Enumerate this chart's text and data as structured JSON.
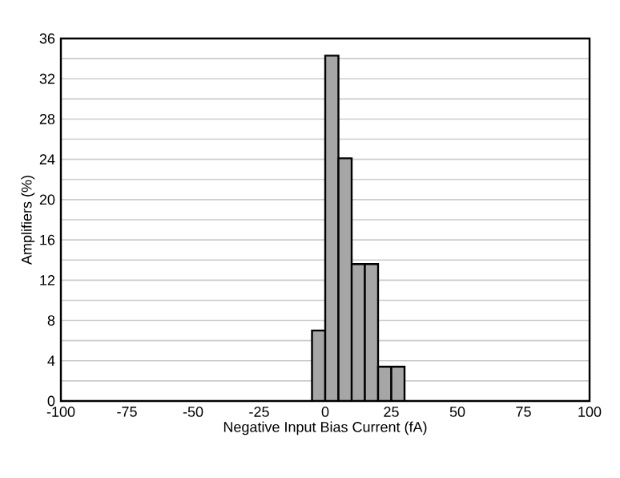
{
  "chart_data": {
    "type": "histogram",
    "xlabel": "Negative Input Bias Current (fA)",
    "ylabel": "Amplifiers (%)",
    "bins": [
      -5,
      0,
      5,
      10,
      15,
      20,
      25,
      30
    ],
    "values": [
      7,
      34.3,
      24.1,
      13.6,
      13.6,
      3.4,
      3.4
    ],
    "color": "#a6a6a6",
    "xlim": [
      -100,
      100
    ],
    "xticks": [
      -100,
      -75,
      -50,
      -25,
      0,
      25,
      50,
      75,
      100
    ],
    "ylim": [
      0,
      36
    ],
    "yticks": [
      0,
      {
        "value": 2,
        "label": null
      },
      4,
      {
        "value": 6,
        "label": null
      },
      8,
      {
        "value": 10,
        "label": null
      },
      12,
      {
        "value": 14,
        "label": null
      },
      16,
      {
        "value": 18,
        "label": null
      },
      20,
      {
        "value": 22,
        "label": null
      },
      24,
      {
        "value": 26,
        "label": null
      },
      28,
      {
        "value": 30,
        "label": null
      },
      32,
      {
        "value": 34,
        "label": null
      },
      36
    ],
    "grid": "y"
  }
}
